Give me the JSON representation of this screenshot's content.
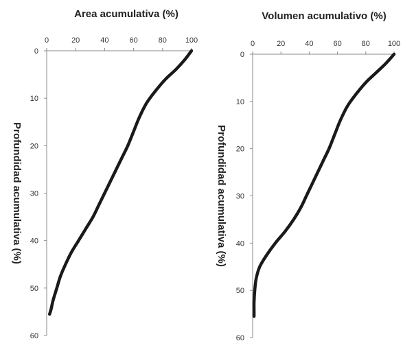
{
  "chart_data": [
    {
      "type": "line",
      "title": "Area acumulativa (%)",
      "xlabel": "",
      "ylabel": "Profundidad acumulativa (%)",
      "x_position": "top",
      "y_inverted": true,
      "xlim": [
        0,
        100
      ],
      "ylim": [
        0,
        60
      ],
      "x_ticks": [
        0,
        20,
        40,
        60,
        80,
        100
      ],
      "y_ticks": [
        0,
        10,
        20,
        30,
        40,
        50,
        60
      ],
      "grid": false,
      "series": [
        {
          "color": "#1a1a1a",
          "points": [
            [
              100,
              0
            ],
            [
              95,
              2
            ],
            [
              89,
              4
            ],
            [
              82,
              6
            ],
            [
              75,
              8.5
            ],
            [
              69,
              11
            ],
            [
              64,
              14
            ],
            [
              60,
              17
            ],
            [
              56,
              20
            ],
            [
              52,
              22.5
            ],
            [
              48,
              25
            ],
            [
              44,
              27.5
            ],
            [
              40,
              30
            ],
            [
              36,
              32.5
            ],
            [
              32,
              35
            ],
            [
              27,
              37.5
            ],
            [
              22,
              40
            ],
            [
              17,
              42.5
            ],
            [
              13,
              45
            ],
            [
              9.5,
              47.5
            ],
            [
              7,
              50
            ],
            [
              4.5,
              52.5
            ],
            [
              3,
              54.5
            ],
            [
              2,
              55.5
            ]
          ]
        }
      ]
    },
    {
      "type": "line",
      "title": "Volumen acumulativo (%)",
      "xlabel": "",
      "ylabel": "Profundidad acumulativa (%)",
      "x_position": "top",
      "y_inverted": true,
      "xlim": [
        0,
        100
      ],
      "ylim": [
        0,
        60
      ],
      "x_ticks": [
        0,
        20,
        40,
        60,
        80,
        100
      ],
      "y_ticks": [
        0,
        10,
        20,
        30,
        40,
        50,
        60
      ],
      "grid": false,
      "series": [
        {
          "color": "#1a1a1a",
          "points": [
            [
              100,
              0
            ],
            [
              94,
              2
            ],
            [
              87,
              4
            ],
            [
              80,
              6
            ],
            [
              73,
              8.5
            ],
            [
              67,
              11
            ],
            [
              62,
              14
            ],
            [
              58,
              17
            ],
            [
              54,
              20
            ],
            [
              50,
              22.5
            ],
            [
              46,
              25
            ],
            [
              42,
              27.5
            ],
            [
              38,
              30
            ],
            [
              34,
              32.5
            ],
            [
              29,
              35
            ],
            [
              23,
              37.5
            ],
            [
              16,
              40
            ],
            [
              10,
              42.5
            ],
            [
              5,
              45
            ],
            [
              2.5,
              47.5
            ],
            [
              1.5,
              50
            ],
            [
              1,
              52.5
            ],
            [
              1,
              54.5
            ],
            [
              1,
              55.5
            ]
          ]
        }
      ]
    }
  ]
}
